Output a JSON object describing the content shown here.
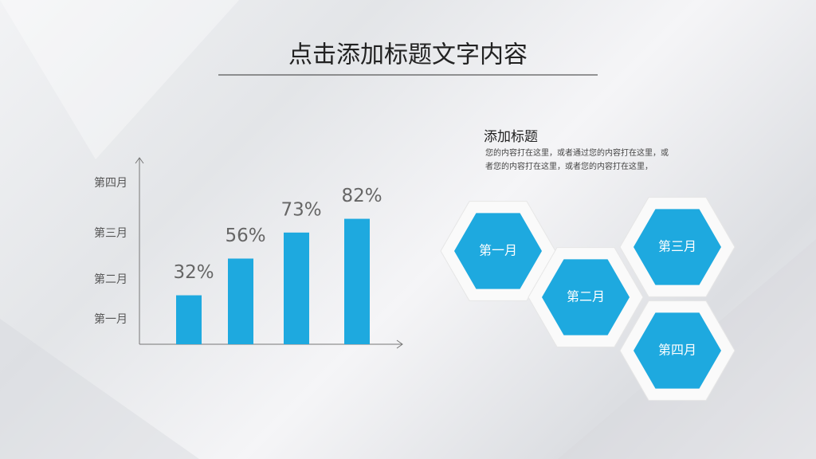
{
  "title": "点击添加标题文字内容",
  "chart_data": {
    "type": "bar",
    "values": [
      32,
      56,
      73,
      82
    ],
    "value_labels": [
      "32%",
      "56%",
      "73%",
      "82%"
    ],
    "y_labels": [
      "第四月",
      "第三月",
      "第二月",
      "第一月"
    ],
    "color": "#1ea9df",
    "ylim": [
      0,
      100
    ]
  },
  "panel": {
    "heading": "添加标题",
    "body": "您的内容打在这里，或者通过您的内容打在这里，或者您的内容打在这里，或者您的内容打在这里，"
  },
  "hexagons": [
    "第一月",
    "第二月",
    "第三月",
    "第四月"
  ]
}
